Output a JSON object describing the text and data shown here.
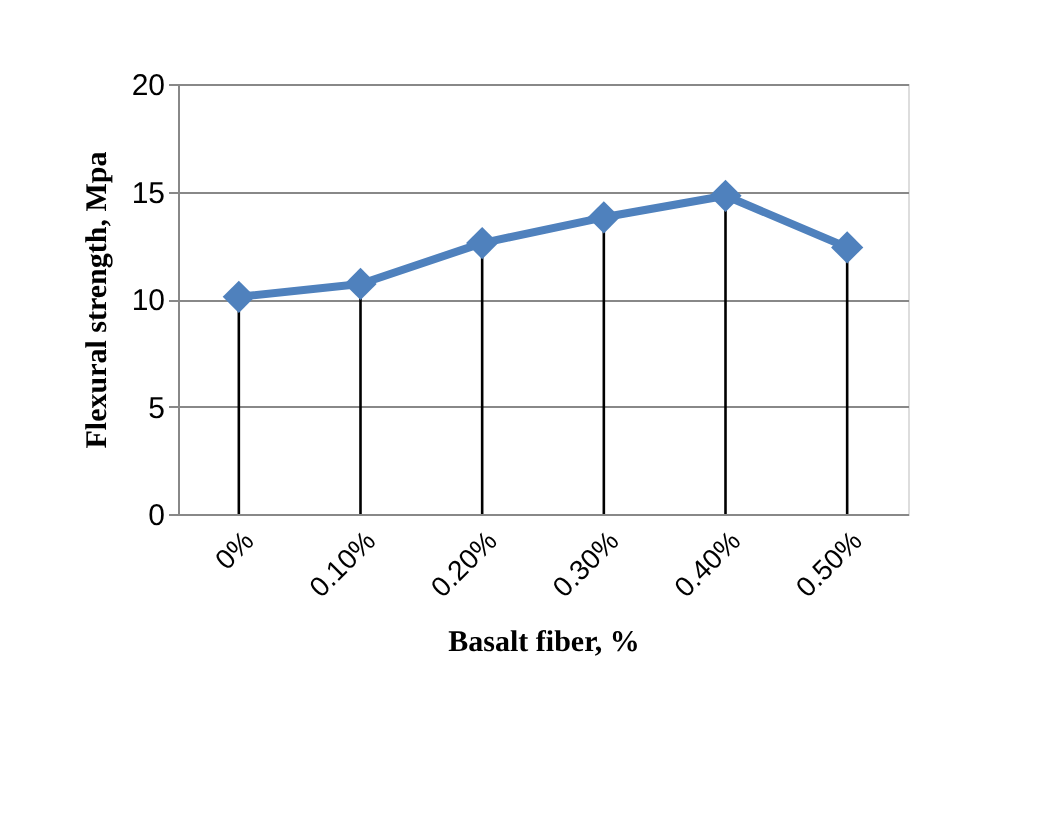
{
  "chart_data": {
    "type": "line",
    "xlabel": "Basalt fiber, %",
    "ylabel": "Flexural strength, Mpa",
    "categories": [
      "0%",
      "0.10%",
      "0.20%",
      "0.30%",
      "0.40%",
      "0.50%"
    ],
    "series": [
      {
        "color": "#4f81bd",
        "values": [
          10.1,
          10.7,
          12.6,
          13.8,
          14.8,
          12.4
        ],
        "errors": [
          [
            0,
            10.1
          ],
          [
            0,
            10.7
          ],
          [
            0,
            12.6
          ],
          [
            0,
            13.8
          ],
          [
            0,
            14.8
          ],
          [
            0,
            12.4
          ]
        ]
      }
    ],
    "ylim": [
      0,
      20
    ],
    "yticks": [
      0,
      5,
      10,
      15,
      20
    ],
    "grid": "y",
    "marker": "diamond",
    "line_style": "solid"
  }
}
